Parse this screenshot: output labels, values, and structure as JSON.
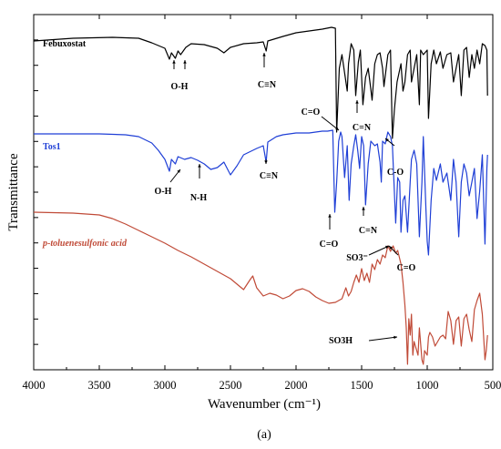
{
  "chart_data": {
    "type": "line",
    "xlabel": "Wavenumber (cm⁻¹)",
    "ylabel": "Transmittance",
    "xlim": [
      4000,
      500
    ],
    "reversed_x": true,
    "x_ticks": [
      "4000",
      "3500",
      "3000",
      "2500",
      "2000",
      "1500",
      "1000",
      "500"
    ],
    "caption": "(a)",
    "series": [
      {
        "name": "Febuxostat",
        "color": "#000000",
        "points": [
          [
            4000,
            45
          ],
          [
            3700,
            42
          ],
          [
            3400,
            41
          ],
          [
            3200,
            42
          ],
          [
            3100,
            47
          ],
          [
            3050,
            50
          ],
          [
            3000,
            53
          ],
          [
            2965,
            65
          ],
          [
            2950,
            58
          ],
          [
            2920,
            64
          ],
          [
            2900,
            56
          ],
          [
            2880,
            60
          ],
          [
            2840,
            52
          ],
          [
            2800,
            48
          ],
          [
            2700,
            49
          ],
          [
            2600,
            53
          ],
          [
            2550,
            58
          ],
          [
            2500,
            52
          ],
          [
            2400,
            48
          ],
          [
            2300,
            47
          ],
          [
            2250,
            46
          ],
          [
            2228,
            56
          ],
          [
            2215,
            45
          ],
          [
            2100,
            40
          ],
          [
            2000,
            36
          ],
          [
            1900,
            34
          ],
          [
            1800,
            32
          ],
          [
            1730,
            30
          ],
          [
            1700,
            31
          ],
          [
            1690,
            145
          ],
          [
            1670,
            75
          ],
          [
            1650,
            60
          ],
          [
            1630,
            80
          ],
          [
            1610,
            100
          ],
          [
            1600,
            70
          ],
          [
            1580,
            48
          ],
          [
            1560,
            55
          ],
          [
            1545,
            105
          ],
          [
            1525,
            68
          ],
          [
            1510,
            55
          ],
          [
            1490,
            115
          ],
          [
            1470,
            85
          ],
          [
            1450,
            75
          ],
          [
            1430,
            98
          ],
          [
            1420,
            110
          ],
          [
            1400,
            70
          ],
          [
            1380,
            60
          ],
          [
            1360,
            58
          ],
          [
            1340,
            75
          ],
          [
            1330,
            95
          ],
          [
            1300,
            60
          ],
          [
            1280,
            55
          ],
          [
            1265,
            152
          ],
          [
            1250,
            120
          ],
          [
            1230,
            90
          ],
          [
            1200,
            70
          ],
          [
            1185,
            100
          ],
          [
            1170,
            90
          ],
          [
            1150,
            60
          ],
          [
            1130,
            55
          ],
          [
            1120,
            90
          ],
          [
            1100,
            75
          ],
          [
            1080,
            60
          ],
          [
            1060,
            115
          ],
          [
            1050,
            55
          ],
          [
            1030,
            60
          ],
          [
            1000,
            55
          ],
          [
            990,
            130
          ],
          [
            970,
            70
          ],
          [
            950,
            55
          ],
          [
            930,
            70
          ],
          [
            900,
            57
          ],
          [
            880,
            75
          ],
          [
            850,
            60
          ],
          [
            820,
            58
          ],
          [
            800,
            90
          ],
          [
            780,
            75
          ],
          [
            760,
            60
          ],
          [
            740,
            105
          ],
          [
            720,
            55
          ],
          [
            700,
            52
          ],
          [
            680,
            85
          ],
          [
            660,
            60
          ],
          [
            640,
            75
          ],
          [
            620,
            55
          ],
          [
            600,
            70
          ],
          [
            580,
            48
          ],
          [
            560,
            50
          ],
          [
            545,
            55
          ],
          [
            540,
            105
          ]
        ]
      },
      {
        "name": "Tos1",
        "color": "#1f3fd6",
        "points": [
          [
            4000,
            147
          ],
          [
            3700,
            147
          ],
          [
            3500,
            147
          ],
          [
            3300,
            148
          ],
          [
            3200,
            150
          ],
          [
            3100,
            157
          ],
          [
            3050,
            165
          ],
          [
            3000,
            175
          ],
          [
            2965,
            188
          ],
          [
            2950,
            175
          ],
          [
            2920,
            180
          ],
          [
            2900,
            172
          ],
          [
            2850,
            175
          ],
          [
            2800,
            173
          ],
          [
            2750,
            176
          ],
          [
            2700,
            180
          ],
          [
            2650,
            186
          ],
          [
            2600,
            184
          ],
          [
            2550,
            178
          ],
          [
            2500,
            192
          ],
          [
            2450,
            182
          ],
          [
            2400,
            170
          ],
          [
            2300,
            163
          ],
          [
            2250,
            160
          ],
          [
            2228,
            178
          ],
          [
            2215,
            156
          ],
          [
            2150,
            150
          ],
          [
            2100,
            148
          ],
          [
            2000,
            146
          ],
          [
            1900,
            146
          ],
          [
            1800,
            144
          ],
          [
            1760,
            144
          ],
          [
            1720,
            143
          ],
          [
            1705,
            233
          ],
          [
            1690,
            200
          ],
          [
            1675,
            155
          ],
          [
            1660,
            145
          ],
          [
            1650,
            150
          ],
          [
            1630,
            195
          ],
          [
            1610,
            160
          ],
          [
            1595,
            220
          ],
          [
            1580,
            180
          ],
          [
            1560,
            160
          ],
          [
            1545,
            148
          ],
          [
            1530,
            165
          ],
          [
            1515,
            185
          ],
          [
            1500,
            150
          ],
          [
            1485,
            160
          ],
          [
            1470,
            225
          ],
          [
            1450,
            180
          ],
          [
            1430,
            155
          ],
          [
            1400,
            160
          ],
          [
            1380,
            158
          ],
          [
            1360,
            178
          ],
          [
            1350,
            200
          ],
          [
            1340,
            155
          ],
          [
            1320,
            158
          ],
          [
            1300,
            145
          ],
          [
            1280,
            150
          ],
          [
            1265,
            160
          ],
          [
            1240,
            245
          ],
          [
            1225,
            195
          ],
          [
            1210,
            200
          ],
          [
            1200,
            255
          ],
          [
            1185,
            220
          ],
          [
            1170,
            215
          ],
          [
            1150,
            255
          ],
          [
            1130,
            200
          ],
          [
            1120,
            175
          ],
          [
            1100,
            165
          ],
          [
            1080,
            180
          ],
          [
            1060,
            260
          ],
          [
            1040,
            200
          ],
          [
            1030,
            150
          ],
          [
            1010,
            230
          ],
          [
            1000,
            265
          ],
          [
            990,
            280
          ],
          [
            970,
            220
          ],
          [
            950,
            185
          ],
          [
            930,
            198
          ],
          [
            900,
            180
          ],
          [
            880,
            200
          ],
          [
            850,
            190
          ],
          [
            820,
            220
          ],
          [
            800,
            175
          ],
          [
            780,
            200
          ],
          [
            760,
            260
          ],
          [
            740,
            200
          ],
          [
            720,
            180
          ],
          [
            700,
            190
          ],
          [
            680,
            215
          ],
          [
            660,
            200
          ],
          [
            640,
            185
          ],
          [
            620,
            240
          ],
          [
            600,
            210
          ],
          [
            580,
            170
          ],
          [
            560,
            268
          ],
          [
            545,
            185
          ],
          [
            540,
            170
          ]
        ]
      },
      {
        "name": "p-toluenesulfonic acid",
        "color": "#c04a37",
        "points": [
          [
            4000,
            233
          ],
          [
            3700,
            234
          ],
          [
            3500,
            236
          ],
          [
            3400,
            240
          ],
          [
            3300,
            246
          ],
          [
            3200,
            253
          ],
          [
            3100,
            260
          ],
          [
            3000,
            267
          ],
          [
            2900,
            275
          ],
          [
            2800,
            282
          ],
          [
            2700,
            290
          ],
          [
            2600,
            298
          ],
          [
            2500,
            306
          ],
          [
            2450,
            312
          ],
          [
            2400,
            318
          ],
          [
            2350,
            307
          ],
          [
            2330,
            303
          ],
          [
            2300,
            316
          ],
          [
            2250,
            325
          ],
          [
            2200,
            322
          ],
          [
            2150,
            324
          ],
          [
            2100,
            328
          ],
          [
            2050,
            325
          ],
          [
            2000,
            319
          ],
          [
            1950,
            317
          ],
          [
            1900,
            320
          ],
          [
            1850,
            326
          ],
          [
            1800,
            330
          ],
          [
            1750,
            333
          ],
          [
            1700,
            332
          ],
          [
            1650,
            328
          ],
          [
            1620,
            316
          ],
          [
            1600,
            325
          ],
          [
            1580,
            320
          ],
          [
            1560,
            310
          ],
          [
            1540,
            302
          ],
          [
            1520,
            310
          ],
          [
            1500,
            295
          ],
          [
            1480,
            308
          ],
          [
            1460,
            300
          ],
          [
            1440,
            310
          ],
          [
            1420,
            290
          ],
          [
            1400,
            296
          ],
          [
            1380,
            285
          ],
          [
            1360,
            290
          ],
          [
            1340,
            280
          ],
          [
            1320,
            283
          ],
          [
            1300,
            270
          ],
          [
            1280,
            276
          ],
          [
            1260,
            270
          ],
          [
            1240,
            278
          ],
          [
            1225,
            275
          ],
          [
            1200,
            290
          ],
          [
            1185,
            310
          ],
          [
            1170,
            335
          ],
          [
            1160,
            360
          ],
          [
            1150,
            400
          ],
          [
            1140,
            350
          ],
          [
            1130,
            368
          ],
          [
            1120,
            345
          ],
          [
            1110,
            390
          ],
          [
            1100,
            375
          ],
          [
            1090,
            380
          ],
          [
            1080,
            385
          ],
          [
            1070,
            390
          ],
          [
            1060,
            360
          ],
          [
            1040,
            395
          ],
          [
            1030,
            400
          ],
          [
            1020,
            385
          ],
          [
            1000,
            390
          ],
          [
            990,
            370
          ],
          [
            980,
            365
          ],
          [
            960,
            370
          ],
          [
            940,
            380
          ],
          [
            920,
            375
          ],
          [
            900,
            370
          ],
          [
            880,
            368
          ],
          [
            860,
            372
          ],
          [
            840,
            342
          ],
          [
            820,
            352
          ],
          [
            800,
            378
          ],
          [
            780,
            352
          ],
          [
            760,
            348
          ],
          [
            740,
            380
          ],
          [
            720,
            350
          ],
          [
            700,
            345
          ],
          [
            680,
            362
          ],
          [
            660,
            375
          ],
          [
            640,
            340
          ],
          [
            620,
            330
          ],
          [
            600,
            322
          ],
          [
            580,
            345
          ],
          [
            560,
            395
          ],
          [
            550,
            385
          ],
          [
            540,
            368
          ]
        ]
      }
    ],
    "annotations": {
      "oh_feb": "O-H",
      "cn_feb": "C≡N",
      "co_top": "C=O",
      "cn_mid": "C=N",
      "co_single": "C-O",
      "oh_tos": "O-H",
      "nh": "N-H",
      "cn_tos": "C≡N",
      "co_bottom": "C=O",
      "cn_bottom": "C=N",
      "so3": "SO3⁻",
      "co_right": "C=O",
      "so3h": "SO3H"
    }
  }
}
